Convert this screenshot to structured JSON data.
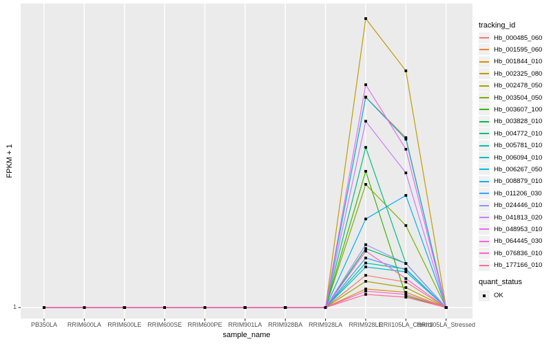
{
  "y_axis": {
    "title": "FPKM + 1",
    "tick_labels": [
      "1"
    ]
  },
  "x_axis": {
    "title": "sample_name",
    "categories": [
      "PB350LA",
      "RRIM600LA",
      "RRIM600LE",
      "RRIM600SE",
      "RRIM600PE",
      "RRIM901LA",
      "RRIM928BA",
      "RRIM928LA",
      "RRIM928LE",
      "RRII105LA_Control",
      "RRII105LA_Stressed"
    ]
  },
  "legend": {
    "tracking_title": "tracking_id",
    "quant_title": "quant_status",
    "quant_items": [
      {
        "label": "OK",
        "marker": "black-square"
      }
    ]
  },
  "style": {
    "panel_bg": "#ebebeb",
    "grid_color": "#ffffff",
    "tick_color": "#333333",
    "tick_text_color": "#4d4d4d",
    "marker_color": "#000000"
  },
  "chart_data": {
    "type": "line",
    "title": "",
    "xlabel": "sample_name",
    "ylabel": "FPKM + 1",
    "y_scale": "log10",
    "y_tick_values": [
      1
    ],
    "grid": "white-on-gray ggplot panel",
    "legend_position": "right",
    "marker": "small black square (quant_status = OK) at every data point",
    "x": [
      "PB350LA",
      "RRIM600LA",
      "RRIM600LE",
      "RRIM600SE",
      "RRIM600PE",
      "RRIM901LA",
      "RRIM928BA",
      "RRIM928LA",
      "RRIM928LE",
      "RRII105LA_Control",
      "RRII105LA_Stressed"
    ],
    "note": "FPKM+1 = 1 for all genes in first 8 samples and last sample; expression spikes at RRIM928LE and declines at RRII105LA_Control",
    "series": [
      {
        "name": "Hb_000485_060",
        "color": "#F8766D",
        "values": [
          1,
          1,
          1,
          1,
          1,
          1,
          1,
          1,
          2.16,
          1.84,
          1
        ]
      },
      {
        "name": "Hb_001595_060",
        "color": "#EA8331",
        "values": [
          1,
          1,
          1,
          1,
          1,
          1,
          1,
          1,
          153,
          58,
          1
        ]
      },
      {
        "name": "Hb_001844_010",
        "color": "#D89000",
        "values": [
          1,
          1,
          1,
          1,
          1,
          1,
          1,
          1,
          1.56,
          1.44,
          1
        ]
      },
      {
        "name": "Hb_002325_080",
        "color": "#C09B00",
        "values": [
          1,
          1,
          1,
          1,
          1,
          1,
          1,
          1,
          1000,
          287,
          1
        ]
      },
      {
        "name": "Hb_002478_050",
        "color": "#A3A500",
        "values": [
          1,
          1,
          1,
          1,
          1,
          1,
          1,
          1,
          1.87,
          1.61,
          1
        ]
      },
      {
        "name": "Hb_003504_050",
        "color": "#7CAE00",
        "values": [
          1,
          1,
          1,
          1,
          1,
          1,
          1,
          1,
          19,
          7.1,
          1
        ]
      },
      {
        "name": "Hb_003607_100",
        "color": "#39B600",
        "values": [
          1,
          1,
          1,
          1,
          1,
          1,
          1,
          1,
          26,
          1.32,
          1
        ]
      },
      {
        "name": "Hb_003828_010",
        "color": "#00BB4E",
        "values": [
          1,
          1,
          1,
          1,
          1,
          1,
          1,
          1,
          4.1,
          2.87,
          1
        ]
      },
      {
        "name": "Hb_004772_010",
        "color": "#00BF7D",
        "values": [
          1,
          1,
          1,
          1,
          1,
          1,
          1,
          1,
          46,
          2.87,
          1
        ]
      },
      {
        "name": "Hb_005781_010",
        "color": "#00C1A3",
        "values": [
          1,
          1,
          1,
          1,
          1,
          1,
          1,
          1,
          2.9,
          2.51,
          1
        ]
      },
      {
        "name": "Hb_006094_010",
        "color": "#00BFC4",
        "values": [
          1,
          1,
          1,
          1,
          1,
          1,
          1,
          1,
          2.64,
          2.35,
          1
        ]
      },
      {
        "name": "Hb_006267_050",
        "color": "#00BAE0",
        "values": [
          1,
          1,
          1,
          1,
          1,
          1,
          1,
          1,
          152,
          56,
          1
        ]
      },
      {
        "name": "Hb_008879_010",
        "color": "#00B0F6",
        "values": [
          1,
          1,
          1,
          1,
          1,
          1,
          1,
          1,
          8.3,
          14.6,
          1
        ]
      },
      {
        "name": "Hb_011206_030",
        "color": "#35A2FF",
        "values": [
          1,
          1,
          1,
          1,
          1,
          1,
          1,
          1,
          3.27,
          2.47,
          1
        ]
      },
      {
        "name": "Hb_024446_010",
        "color": "#9590FF",
        "values": [
          1,
          1,
          1,
          1,
          1,
          1,
          1,
          1,
          4.5,
          2.87,
          1
        ]
      },
      {
        "name": "Hb_041813_020",
        "color": "#C77CFF",
        "values": [
          1,
          1,
          1,
          1,
          1,
          1,
          1,
          1,
          86,
          25,
          1
        ]
      },
      {
        "name": "Hb_048953_010",
        "color": "#E76BF3",
        "values": [
          1,
          1,
          1,
          1,
          1,
          1,
          1,
          1,
          206,
          44,
          1
        ]
      },
      {
        "name": "Hb_064445_030",
        "color": "#FA62DB",
        "values": [
          1,
          1,
          1,
          1,
          1,
          1,
          1,
          1,
          1.48,
          1.37,
          1
        ]
      },
      {
        "name": "Hb_076836_010",
        "color": "#FF61C9",
        "values": [
          1,
          1,
          1,
          1,
          1,
          1,
          1,
          1,
          3.85,
          2.0,
          1
        ]
      },
      {
        "name": "Hb_177166_010",
        "color": "#FF6A98",
        "values": [
          1,
          1,
          1,
          1,
          1,
          1,
          1,
          1,
          1.37,
          1.28,
          1
        ]
      }
    ]
  }
}
